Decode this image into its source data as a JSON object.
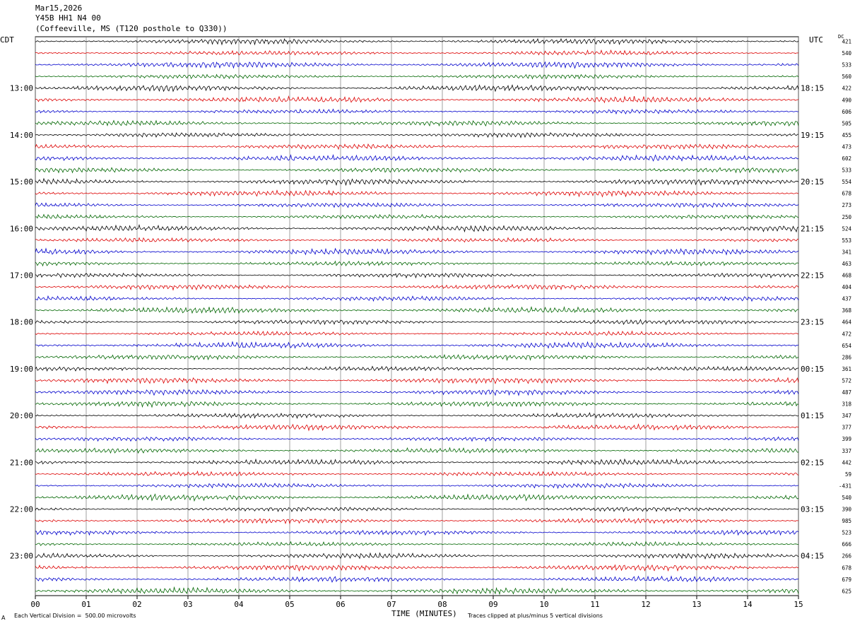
{
  "header": {
    "date": "Mar15,2026",
    "station": "Y45B HH1 N4 00",
    "location": "(Coffeeville, MS (T120 posthole to Q330))"
  },
  "left_tz": "CDT",
  "right_tz": "UTC",
  "dc_label": "DC",
  "footer": {
    "scale_note": "Each Vertical Division =  500.00 microvolts",
    "clip_note": "Traces clipped at plus/minus 5 vertical divisions",
    "corner_mark": "A"
  },
  "chart_data": {
    "type": "line",
    "title": "",
    "xlabel": "TIME (MINUTES)",
    "xlim": [
      0,
      15
    ],
    "x_ticks": [
      "00",
      "01",
      "02",
      "03",
      "04",
      "05",
      "06",
      "07",
      "08",
      "09",
      "10",
      "11",
      "12",
      "13",
      "14",
      "15"
    ],
    "trace_colors": [
      "#000000",
      "#dd0000",
      "#0000cc",
      "#006600"
    ],
    "left_hour_labels": [
      "13:00",
      "14:00",
      "15:00",
      "16:00",
      "17:00",
      "18:00",
      "19:00",
      "20:00",
      "21:00",
      "22:00",
      "23:00"
    ],
    "right_hour_labels": [
      "18:15",
      "19:15",
      "20:15",
      "21:15",
      "22:15",
      "23:15",
      "00:15",
      "01:15",
      "02:15",
      "03:15",
      "04:15"
    ],
    "dc_offsets": [
      "421",
      "540",
      "533",
      "560",
      "422",
      "490",
      "606",
      "505",
      "455",
      "473",
      "602",
      "533",
      "554",
      "678",
      "273",
      "250",
      "524",
      "553",
      "341",
      "463",
      "468",
      "404",
      "437",
      "368",
      "464",
      "472",
      "654",
      "286",
      "361",
      "572",
      "487",
      "318",
      "347",
      "377",
      "399",
      "337",
      "442",
      "59",
      "-431",
      "540",
      "390",
      "985",
      "523",
      "666",
      "266",
      "678",
      "679",
      "625"
    ]
  }
}
